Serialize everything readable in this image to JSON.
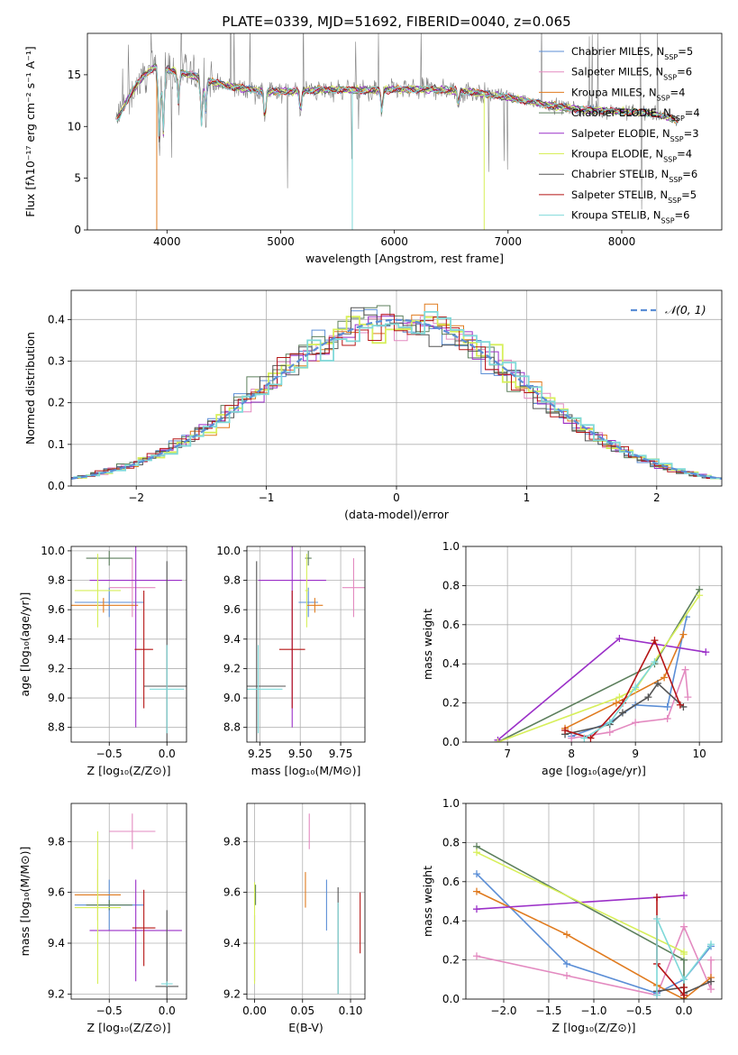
{
  "figure_title": "PLATE=0339, MJD=51692, FIBERID=0040, z=0.065",
  "colors": {
    "Chabrier MILES": "#5b8ed6",
    "Salpeter MILES": "#e38ac0",
    "Kroupa MILES": "#e07b1f",
    "Chabrier ELODIE": "#5c7f5c",
    "Salpeter ELODIE": "#9b30c8",
    "Kroupa ELODIE": "#d7ef5a",
    "Chabrier STELIB": "#555555",
    "Salpeter STELIB": "#b51515",
    "Kroupa STELIB": "#7fd9d9",
    "data": "#808080"
  },
  "chart_data": [
    {
      "id": "spectrum",
      "type": "line",
      "title": "PLATE=0339, MJD=51692, FIBERID=0040, z=0.065",
      "xlabel": "wavelength [Angstrom, rest frame]",
      "ylabel": "Flux [fλ10⁻¹⁷ erg cm⁻² s⁻¹ A⁻¹]",
      "xlim": [
        3300,
        8880
      ],
      "ylim": [
        0,
        19
      ],
      "xticks": [
        4000,
        5000,
        6000,
        7000,
        8000
      ],
      "yticks": [
        0,
        5,
        10,
        15
      ],
      "grid": false,
      "legend_position": "top-right",
      "continuum": {
        "x": [
          3550,
          3600,
          3700,
          3800,
          3900,
          4000,
          4100,
          4200,
          4300,
          4500,
          4700,
          4900,
          5100,
          5300,
          5500,
          5700,
          5900,
          6100,
          6300,
          6500,
          6700,
          6900,
          7100,
          7300,
          7500,
          7700,
          7900,
          8100,
          8300,
          8500
        ],
        "y": [
          10.5,
          11.5,
          13.5,
          15.0,
          15.8,
          15.5,
          15.3,
          15.0,
          14.6,
          14.0,
          13.6,
          13.4,
          13.4,
          13.5,
          13.6,
          13.5,
          13.5,
          13.6,
          13.6,
          13.5,
          13.3,
          13.0,
          12.6,
          12.2,
          11.8,
          11.6,
          11.5,
          11.4,
          11.2,
          10.6
        ]
      },
      "series": [
        {
          "name": "Chabrier MILES, N_SSP=5"
        },
        {
          "name": "Salpeter MILES, N_SSP=6"
        },
        {
          "name": "Kroupa MILES, N_SSP=4"
        },
        {
          "name": "Chabrier ELODIE, N_SSP=4"
        },
        {
          "name": "Salpeter ELODIE, N_SSP=3"
        },
        {
          "name": "Kroupa ELODIE, N_SSP=4"
        },
        {
          "name": "Chabrier STELIB, N_SSP=6"
        },
        {
          "name": "Salpeter STELIB, N_SSP=5"
        },
        {
          "name": "Kroupa STELIB, N_SSP=6"
        }
      ]
    },
    {
      "id": "residuals",
      "type": "line",
      "xlabel": "(data-model)/error",
      "ylabel": "Normed distribution",
      "xlim": [
        -2.5,
        2.5
      ],
      "ylim": [
        0,
        0.47
      ],
      "xticks": [
        -2,
        -1,
        0,
        1,
        2
      ],
      "yticks": [
        0.0,
        0.1,
        0.2,
        0.3,
        0.4
      ],
      "grid": true,
      "legend_position": "top-right",
      "legend": "𝒩(0, 1)",
      "normal": {
        "mean": 0,
        "sigma": 1
      },
      "bin_width": 0.1
    },
    {
      "id": "age_Z",
      "type": "scatter",
      "xlabel": "Z [log₁₀(Z/Z⊙)]",
      "ylabel": "age  [log₁₀(age/yr)]",
      "xlim": [
        -0.83,
        0.17
      ],
      "ylim": [
        8.7,
        10.03
      ],
      "xticks": [
        -0.5,
        0.0
      ],
      "yticks": [
        8.8,
        9.0,
        9.2,
        9.4,
        9.6,
        9.8,
        10.0
      ],
      "grid": true,
      "points": [
        {
          "model": "Chabrier MILES",
          "x": -0.5,
          "xerr": 0.3,
          "y": 9.65,
          "yerr": 0.1
        },
        {
          "model": "Salpeter MILES",
          "x": -0.3,
          "xerr": 0.2,
          "y": 9.75,
          "yerr": 0.2
        },
        {
          "model": "Kroupa MILES",
          "x": -0.55,
          "xerr": 0.3,
          "y": 9.63,
          "yerr": 0.05
        },
        {
          "model": "Chabrier ELODIE",
          "x": -0.5,
          "xerr": 0.2,
          "y": 9.95,
          "yerr": 0.05
        },
        {
          "model": "Salpeter ELODIE",
          "x": -0.27,
          "xerr": 0.4,
          "y": 9.8,
          "yerr": 1.0
        },
        {
          "model": "Kroupa ELODIE",
          "x": -0.6,
          "xerr": 0.2,
          "y": 9.73,
          "yerr": 0.25
        },
        {
          "model": "Chabrier STELIB",
          "x": 0.0,
          "xerr": 0.2,
          "y": 9.08,
          "yerr": 0.85
        },
        {
          "model": "Salpeter STELIB",
          "x": -0.2,
          "xerr": 0.08,
          "y": 9.33,
          "yerr": 0.4
        },
        {
          "model": "Kroupa STELIB",
          "x": 0.0,
          "xerr": 0.15,
          "y": 9.06,
          "yerr": 0.3
        }
      ]
    },
    {
      "id": "age_mass",
      "type": "scatter",
      "xlabel": "mass [log₁₀(M/M⊙)]",
      "xlim": [
        9.17,
        9.9
      ],
      "ylim": [
        8.7,
        10.03
      ],
      "xticks": [
        9.25,
        9.5,
        9.75
      ],
      "yticks": [
        8.8,
        9.0,
        9.2,
        9.4,
        9.6,
        9.8,
        10.0
      ],
      "grid": true,
      "points": [
        {
          "model": "Chabrier MILES",
          "x": 9.55,
          "xerr": 0.06,
          "y": 9.65,
          "yerr": 0.1
        },
        {
          "model": "Salpeter MILES",
          "x": 9.83,
          "xerr": 0.07,
          "y": 9.75,
          "yerr": 0.2
        },
        {
          "model": "Kroupa MILES",
          "x": 9.59,
          "xerr": 0.05,
          "y": 9.63,
          "yerr": 0.05
        },
        {
          "model": "Chabrier ELODIE",
          "x": 9.55,
          "xerr": 0.02,
          "y": 9.95,
          "yerr": 0.05
        },
        {
          "model": "Salpeter ELODIE",
          "x": 9.45,
          "xerr": 0.21,
          "y": 9.8,
          "yerr": 1.0
        },
        {
          "model": "Kroupa ELODIE",
          "x": 9.54,
          "xerr": 0.01,
          "y": 9.73,
          "yerr": 0.25
        },
        {
          "model": "Chabrier STELIB",
          "x": 9.23,
          "xerr": 0.18,
          "y": 9.08,
          "yerr": 0.85
        },
        {
          "model": "Salpeter STELIB",
          "x": 9.45,
          "xerr": 0.08,
          "y": 9.33,
          "yerr": 0.4
        },
        {
          "model": "Kroupa STELIB",
          "x": 9.24,
          "xerr": 0.15,
          "y": 9.06,
          "yerr": 0.3
        }
      ]
    },
    {
      "id": "mass_weight_age",
      "type": "line",
      "xlabel": "age  [log₁₀(age/yr)]",
      "ylabel": "mass weight",
      "xlim": [
        6.35,
        10.35
      ],
      "ylim": [
        0,
        1.0
      ],
      "xticks": [
        7,
        8,
        9,
        10
      ],
      "yticks": [
        0.0,
        0.2,
        0.4,
        0.6,
        0.8,
        1.0
      ],
      "grid": true,
      "series": [
        {
          "model": "Chabrier MILES",
          "x": [
            8.0,
            8.6,
            9.0,
            9.5,
            9.8
          ],
          "y": [
            0.03,
            0.1,
            0.19,
            0.18,
            0.64
          ]
        },
        {
          "model": "Salpeter MILES",
          "x": [
            8.0,
            8.6,
            9.0,
            9.5,
            9.78,
            9.82
          ],
          "y": [
            0.02,
            0.05,
            0.1,
            0.12,
            0.37,
            0.23
          ]
        },
        {
          "model": "Kroupa MILES",
          "x": [
            7.9,
            8.7,
            9.45,
            9.75
          ],
          "y": [
            0.07,
            0.2,
            0.33,
            0.55
          ]
        },
        {
          "model": "Chabrier ELODIE",
          "x": [
            6.85,
            9.3,
            10.0
          ],
          "y": [
            0.0,
            0.4,
            0.78
          ]
        },
        {
          "model": "Salpeter ELODIE",
          "x": [
            6.85,
            8.75,
            10.1
          ],
          "y": [
            0.01,
            0.53,
            0.46
          ]
        },
        {
          "model": "Kroupa ELODIE",
          "x": [
            6.85,
            8.75,
            9.0,
            10.0
          ],
          "y": [
            0.0,
            0.23,
            0.27,
            0.75
          ]
        },
        {
          "model": "Chabrier STELIB",
          "x": [
            7.9,
            8.6,
            8.8,
            9.2,
            9.35,
            9.75
          ],
          "y": [
            0.04,
            0.09,
            0.15,
            0.23,
            0.3,
            0.18
          ]
        },
        {
          "model": "Salpeter STELIB",
          "x": [
            7.9,
            8.3,
            8.8,
            9.3,
            9.7
          ],
          "y": [
            0.06,
            0.02,
            0.2,
            0.52,
            0.19
          ]
        },
        {
          "model": "Kroupa STELIB",
          "x": [
            8.2,
            8.6,
            9.0,
            9.3
          ],
          "y": [
            0.02,
            0.1,
            0.28,
            0.41
          ]
        }
      ]
    },
    {
      "id": "mass_Z",
      "type": "scatter",
      "xlabel": "Z [log₁₀(Z/Z⊙)]",
      "ylabel": "mass [log₁₀(M/M⊙)]",
      "xlim": [
        -0.83,
        0.17
      ],
      "ylim": [
        9.18,
        9.95
      ],
      "xticks": [
        -0.5,
        0.0
      ],
      "yticks": [
        9.2,
        9.4,
        9.6,
        9.8
      ],
      "grid": true,
      "points": [
        {
          "model": "Chabrier MILES",
          "x": -0.5,
          "xerr": 0.3,
          "y": 9.55,
          "yerr": 0.1
        },
        {
          "model": "Salpeter MILES",
          "x": -0.3,
          "xerr": 0.2,
          "y": 9.84,
          "yerr": 0.07
        },
        {
          "model": "Kroupa MILES",
          "x": -0.6,
          "xerr": 0.2,
          "y": 9.59,
          "yerr": 0.1
        },
        {
          "model": "Chabrier ELODIE",
          "x": -0.5,
          "xerr": 0.2,
          "y": 9.55,
          "yerr": 0.02
        },
        {
          "model": "Salpeter ELODIE",
          "x": -0.27,
          "xerr": 0.4,
          "y": 9.45,
          "yerr": 0.2
        },
        {
          "model": "Kroupa ELODIE",
          "x": -0.6,
          "xerr": 0.2,
          "y": 9.54,
          "yerr": 0.3
        },
        {
          "model": "Chabrier STELIB",
          "x": 0.0,
          "xerr": 0.1,
          "y": 9.23,
          "yerr": 0.3
        },
        {
          "model": "Salpeter STELIB",
          "x": -0.2,
          "xerr": 0.1,
          "y": 9.46,
          "yerr": 0.15
        },
        {
          "model": "Kroupa STELIB",
          "x": 0.0,
          "xerr": 0.05,
          "y": 9.24,
          "yerr": 0.01
        }
      ]
    },
    {
      "id": "mass_EBV",
      "type": "scatter",
      "xlabel": "E(B-V)",
      "xlim": [
        -0.008,
        0.115
      ],
      "ylim": [
        9.18,
        9.95
      ],
      "xticks": [
        0.0,
        0.05,
        0.1
      ],
      "yticks": [
        9.2,
        9.4,
        9.6,
        9.8
      ],
      "grid": true,
      "points": [
        {
          "model": "Chabrier MILES",
          "x": 0.075,
          "y": 9.55,
          "yerr": 0.1
        },
        {
          "model": "Salpeter MILES",
          "x": 0.057,
          "y": 9.84,
          "yerr": 0.07
        },
        {
          "model": "Kroupa MILES",
          "x": 0.053,
          "y": 9.61,
          "yerr": 0.07
        },
        {
          "model": "Chabrier ELODIE",
          "x": 0.001,
          "y": 9.59,
          "yerr": 0.04
        },
        {
          "model": "Salpeter ELODIE",
          "x": 0.0,
          "y": 9.38,
          "yerr": 0.13
        },
        {
          "model": "Kroupa ELODIE",
          "x": 0.0,
          "y": 9.44,
          "yerr": 0.2
        },
        {
          "model": "Chabrier STELIB",
          "x": 0.087,
          "y": 9.41,
          "yerr": 0.21
        },
        {
          "model": "Salpeter STELIB",
          "x": 0.11,
          "y": 9.48,
          "yerr": 0.12
        },
        {
          "model": "Kroupa STELIB",
          "x": 0.087,
          "y": 9.38,
          "yerr": 0.18
        }
      ]
    },
    {
      "id": "mass_weight_Z",
      "type": "line",
      "xlabel": "Z [log₁₀(Z/Z⊙)]",
      "ylabel": "mass weight",
      "xlim": [
        -2.42,
        0.42
      ],
      "ylim": [
        0,
        1.0
      ],
      "xticks": [
        -2.0,
        -1.5,
        -1.0,
        -0.5,
        0.0
      ],
      "yticks": [
        0.0,
        0.2,
        0.4,
        0.6,
        0.8,
        1.0
      ],
      "grid": true,
      "series": [
        {
          "model": "Chabrier MILES",
          "x": [
            -2.3,
            -1.3,
            -0.3,
            0.0,
            0.3
          ],
          "y": [
            0.64,
            0.18,
            0.03,
            0.1,
            0.27
          ]
        },
        {
          "model": "Salpeter MILES",
          "x": [
            -2.3,
            -1.3,
            -0.3,
            0.0,
            0.3,
            0.3
          ],
          "y": [
            0.22,
            0.12,
            0.02,
            0.37,
            0.05,
            0.2
          ]
        },
        {
          "model": "Kroupa MILES",
          "x": [
            -2.3,
            -1.3,
            -0.3,
            0.0,
            0.3
          ],
          "y": [
            0.55,
            0.33,
            0.07,
            0.0,
            0.11
          ]
        },
        {
          "model": "Chabrier ELODIE",
          "x": [
            -2.3,
            0.0,
            0.0
          ],
          "y": [
            0.78,
            0.2,
            0.0
          ]
        },
        {
          "model": "Salpeter ELODIE",
          "x": [
            -2.3,
            -0.3,
            0.0
          ],
          "y": [
            0.46,
            0.52,
            0.53
          ]
        },
        {
          "model": "Kroupa ELODIE",
          "x": [
            -2.3,
            0.0,
            0.0
          ],
          "y": [
            0.75,
            0.24,
            0.23
          ]
        },
        {
          "model": "Chabrier STELIB",
          "x": [
            -0.3,
            0.0,
            0.0,
            0.3
          ],
          "y": [
            0.04,
            0.06,
            0.03,
            0.09
          ]
        },
        {
          "model": "Salpeter STELIB",
          "x": [
            -0.3,
            -0.3,
            0.0,
            0.0
          ],
          "y": [
            0.52,
            0.18,
            0.02,
            0.06
          ]
        },
        {
          "model": "Kroupa STELIB",
          "x": [
            -0.3,
            -0.3,
            0.0,
            0.3
          ],
          "y": [
            0.02,
            0.41,
            0.1,
            0.28
          ]
        }
      ]
    }
  ]
}
